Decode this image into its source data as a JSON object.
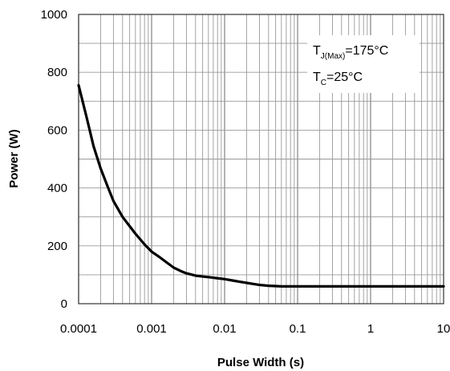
{
  "chart_data": {
    "type": "line",
    "xlabel": "Pulse Width (s)",
    "ylabel": "Power (W)",
    "x_scale": "log",
    "xlim": [
      0.0001,
      10
    ],
    "ylim": [
      0,
      1000
    ],
    "x_ticks": [
      "0.0001",
      "0.001",
      "0.01",
      "0.1",
      "1",
      "10"
    ],
    "y_ticks": [
      "0",
      "200",
      "400",
      "600",
      "800",
      "1000"
    ],
    "grid": true,
    "annotation": {
      "line1_main": "T",
      "line1_sub": "J(Max)",
      "line1_rest": "=175°C",
      "line2_main": "T",
      "line2_sub": "C",
      "line2_rest": "=25°C"
    },
    "series": [
      {
        "color": "#000000",
        "x": [
          0.0001,
          0.00013,
          0.00016,
          0.0002,
          0.00025,
          0.0003,
          0.0004,
          0.0005,
          0.0006,
          0.0008,
          0.001,
          0.0013,
          0.0016,
          0.002,
          0.0025,
          0.003,
          0.004,
          0.005,
          0.006,
          0.008,
          0.01,
          0.013,
          0.016,
          0.02,
          0.025,
          0.03,
          0.04,
          0.05,
          0.06,
          0.08,
          0.1,
          0.2,
          0.5,
          1,
          2,
          5,
          10
        ],
        "y": [
          755,
          640,
          545,
          468,
          405,
          355,
          300,
          268,
          242,
          205,
          180,
          160,
          143,
          125,
          113,
          105,
          97,
          94,
          92,
          88,
          85,
          80,
          76,
          72,
          68,
          65,
          62,
          61,
          60,
          60,
          60,
          60,
          60,
          60,
          60,
          60,
          60
        ]
      }
    ]
  }
}
